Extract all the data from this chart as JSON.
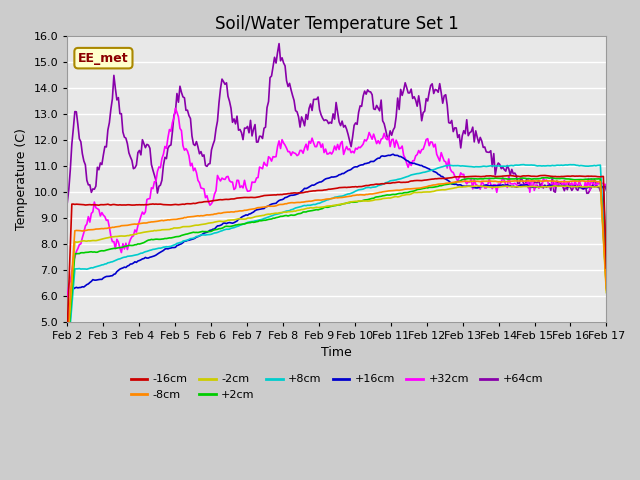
{
  "title": "Soil/Water Temperature Set 1",
  "xlabel": "Time",
  "ylabel": "Temperature (C)",
  "ylim": [
    5.0,
    16.0
  ],
  "yticks": [
    5.0,
    6.0,
    7.0,
    8.0,
    9.0,
    10.0,
    11.0,
    12.0,
    13.0,
    14.0,
    15.0,
    16.0
  ],
  "x_labels": [
    "Feb 2",
    "Feb 3",
    "Feb 4",
    "Feb 5",
    "Feb 6",
    "Feb 7",
    "Feb 8",
    "Feb 9",
    "Feb 10",
    "Feb 11",
    "Feb 12",
    "Feb 13",
    "Feb 14",
    "Feb 15",
    "Feb 16",
    "Feb 17"
  ],
  "annotation_text": "EE_met",
  "annotation_bg": "#ffffcc",
  "annotation_border": "#aa8800",
  "series_colors": {
    "-16cm": "#cc0000",
    "-8cm": "#ff8800",
    "-2cm": "#cccc00",
    "+2cm": "#00cc00",
    "+8cm": "#00cccc",
    "+16cm": "#0000cc",
    "+32cm": "#ff00ff",
    "+64cm": "#8800aa"
  },
  "background_color": "#e8e8e8",
  "grid_color": "#ffffff",
  "title_fontsize": 12,
  "label_fontsize": 9,
  "tick_fontsize": 8,
  "figsize": [
    6.4,
    4.8
  ],
  "dpi": 100,
  "legend_ncol_row1": 6,
  "legend_ncol_row2": 2
}
